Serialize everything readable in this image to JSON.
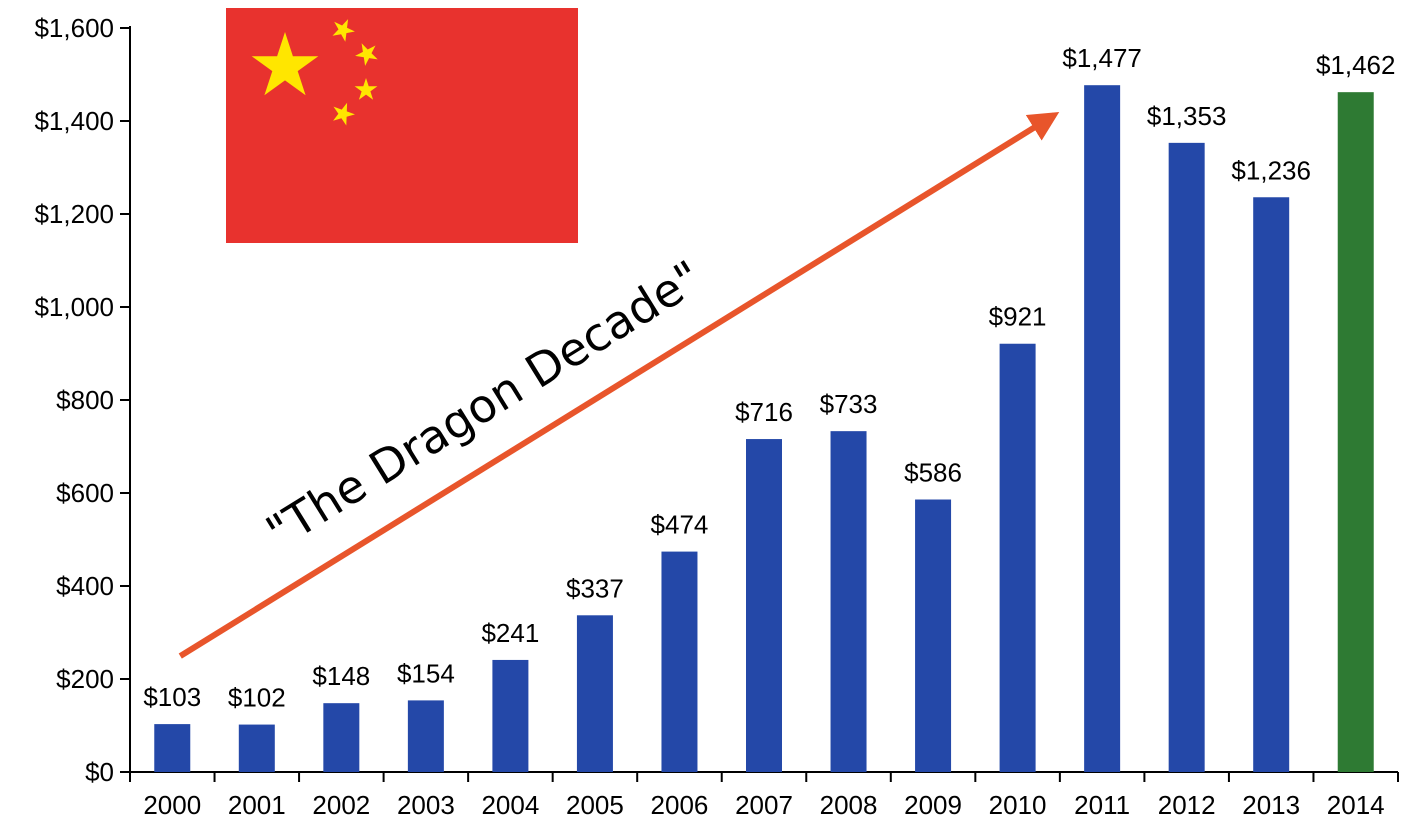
{
  "chart_data": {
    "type": "bar",
    "categories": [
      "2000",
      "2001",
      "2002",
      "2003",
      "2004",
      "2005",
      "2006",
      "2007",
      "2008",
      "2009",
      "2010",
      "2011",
      "2012",
      "2013",
      "2014"
    ],
    "values": [
      103,
      102,
      148,
      154,
      241,
      337,
      474,
      716,
      733,
      586,
      921,
      1477,
      1353,
      1236,
      1462
    ],
    "data_labels": [
      "$103",
      "$102",
      "$148",
      "$154",
      "$241",
      "$337",
      "$474",
      "$716",
      "$733",
      "$586",
      "$921",
      "$1,477",
      "$1,353",
      "$1,236",
      "$1,462"
    ],
    "ytick_values": [
      0,
      200,
      400,
      600,
      800,
      1000,
      1200,
      1400,
      1600
    ],
    "ytick_labels": [
      "$0",
      "$200",
      "$400",
      "$600",
      "$800",
      "$1,000",
      "$1,200",
      "$1,400",
      "$1,600"
    ],
    "ylim": [
      0,
      1600
    ],
    "title": "",
    "xlabel": "",
    "ylabel": "",
    "grid": false,
    "legend": "none",
    "colors": {
      "bar": "#2448a8",
      "highlight_bar": "#2e7a33",
      "arrow": "#e8552b",
      "flag_red": "#e8322e",
      "flag_star": "#ffe600"
    },
    "highlight_category": "2014",
    "annotation": {
      "text": "\"The Dragon Decade\"",
      "arrow_from_category": "2000",
      "arrow_to_category": "2011"
    },
    "flag_icon": "china-flag-icon"
  }
}
